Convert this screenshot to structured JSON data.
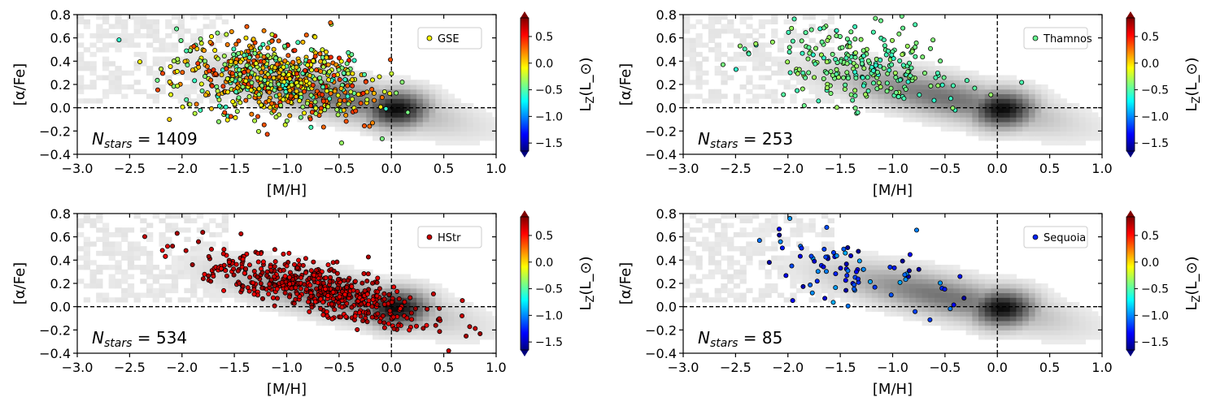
{
  "figure": {
    "colorbar": {
      "label": "L_Z(L_⊙)",
      "range": [
        -1.65,
        0.85
      ],
      "ticks": [
        -1.5,
        -1.0,
        -0.5,
        0.0,
        0.5
      ],
      "tick_labels": [
        "−1.5",
        "−1.0",
        "−0.5",
        "0.0",
        "0.5"
      ],
      "colormap": [
        "#00007f",
        "#0000ff",
        "#007fff",
        "#00ffff",
        "#7fff7f",
        "#ffff00",
        "#ff7f00",
        "#ff0000",
        "#7f0000"
      ]
    },
    "axes": {
      "xlabel": "[M/H]",
      "ylabel": "[α/Fe]",
      "xlim": [
        -3.0,
        1.0
      ],
      "ylim": [
        -0.4,
        0.8
      ],
      "xticks": [
        -3.0,
        -2.5,
        -2.0,
        -1.5,
        -1.0,
        -0.5,
        0.0,
        0.5,
        1.0
      ],
      "xtick_labels": [
        "−3.0",
        "−2.5",
        "−2.0",
        "−1.5",
        "−1.0",
        "−0.5",
        "0.0",
        "0.5",
        "1.0"
      ],
      "yticks": [
        -0.4,
        -0.2,
        0.0,
        0.2,
        0.4,
        0.6,
        0.8
      ],
      "ytick_labels": [
        "−0.4",
        "−0.2",
        "0.0",
        "0.2",
        "0.4",
        "0.6",
        "0.8"
      ],
      "reference_lines": {
        "x": 0.0,
        "y": 0.0
      }
    }
  },
  "chart_data": [
    {
      "type": "scatter",
      "panel": "top-left",
      "series": [
        {
          "name": "GSE",
          "points_shown": 1409
        }
      ],
      "n_stars_text": "N_stars = 1409",
      "center": {
        "mh": -1.1,
        "afe": 0.25
      },
      "lz_typical": [
        -0.6,
        0.45
      ],
      "legend_position": "top-right",
      "background": "grey density histogram of all stars, peaking near [M/H]=0, [α/Fe]=0"
    },
    {
      "type": "scatter",
      "panel": "top-right",
      "series": [
        {
          "name": "Thamnos",
          "points_shown": 253
        }
      ],
      "n_stars_text": "N_stars = 253",
      "center": {
        "mh": -1.3,
        "afe": 0.35
      },
      "lz_typical": [
        -0.6,
        -0.3
      ],
      "legend_position": "top-right",
      "background": "grey density histogram of all stars, peaking near [M/H]=0, [α/Fe]=0"
    },
    {
      "type": "scatter",
      "panel": "bottom-left",
      "series": [
        {
          "name": "HStr",
          "points_shown": 534
        }
      ],
      "n_stars_text": "N_stars = 534",
      "center": {
        "mh": -0.7,
        "afe": 0.15
      },
      "lz_typical": [
        0.55,
        0.8
      ],
      "legend_position": "top-right",
      "background": "grey density histogram of all stars, peaking near [M/H]=0, [α/Fe]=0"
    },
    {
      "type": "scatter",
      "panel": "bottom-right",
      "series": [
        {
          "name": "Sequoia",
          "points_shown": 85
        }
      ],
      "n_stars_text": "N_stars = 85",
      "center": {
        "mh": -1.4,
        "afe": 0.3
      },
      "lz_typical": [
        -1.6,
        -0.9
      ],
      "legend_position": "top-right",
      "background": "grey density histogram of all stars, peaking near [M/H]=0, [α/Fe]=0"
    }
  ]
}
